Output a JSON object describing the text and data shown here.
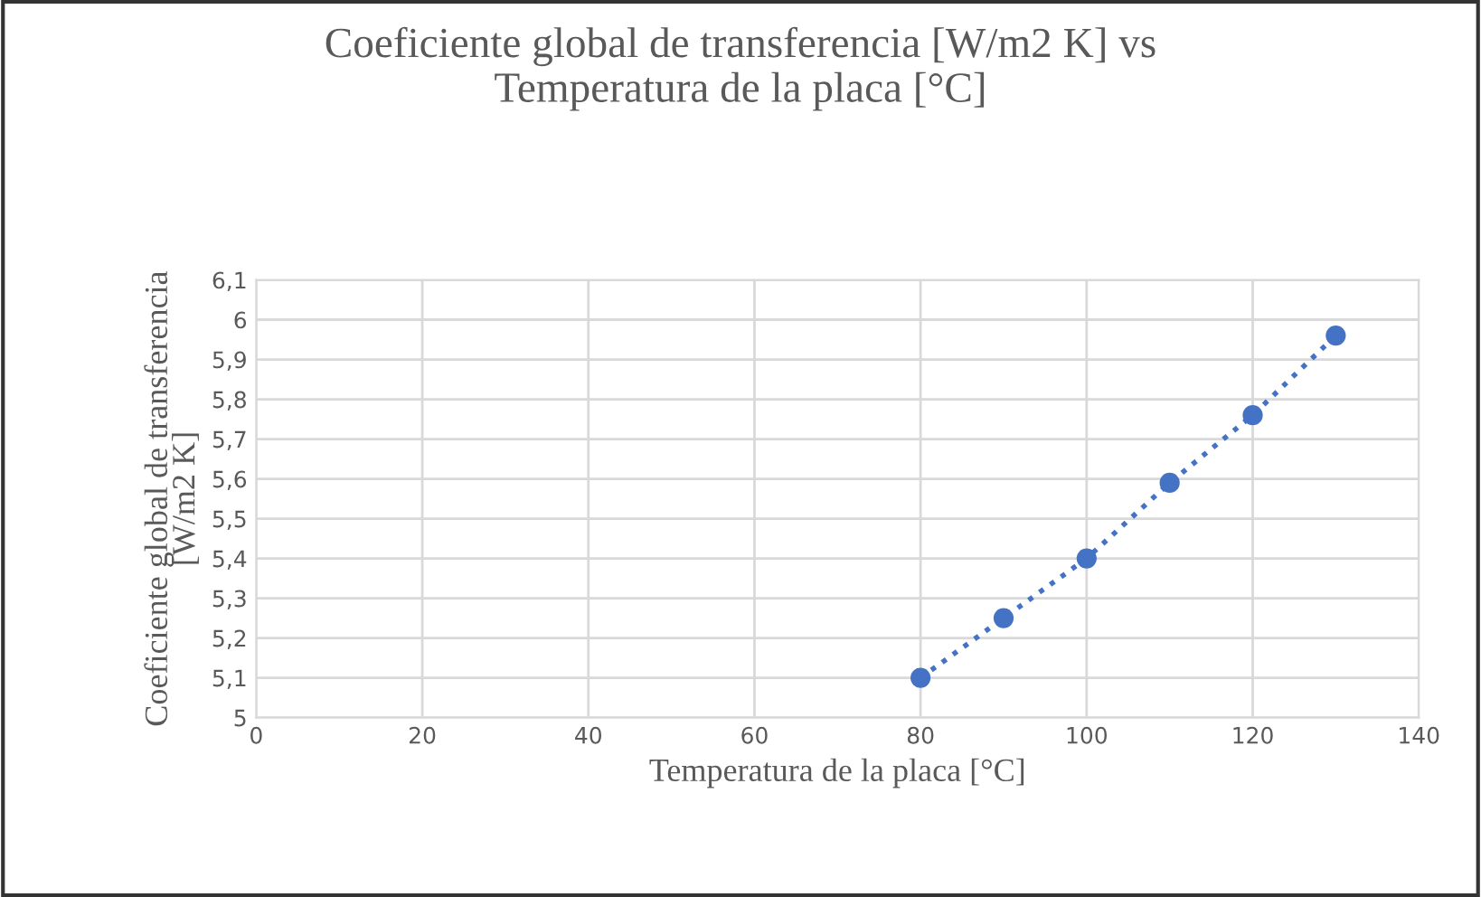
{
  "chart_data": {
    "type": "line",
    "title": "Coeficiente global de transferencia [W/m2 K] vs Temperatura de la placa [°C]",
    "xlabel": "Temperatura de la placa [°C]",
    "ylabel": "Coeficiente global de transferencia [W/m2 K]",
    "x": [
      80,
      90,
      100,
      110,
      120,
      130
    ],
    "series": [
      {
        "color": "#4472c4",
        "values": [
          5.1,
          5.25,
          5.4,
          5.59,
          5.76,
          5.96
        ]
      }
    ],
    "marker": "circle",
    "line_style": "dotted",
    "grid": true,
    "xlim": [
      0,
      140
    ],
    "xticks": [
      0,
      20,
      40,
      60,
      80,
      100,
      120,
      140
    ],
    "ylim": [
      5,
      6.1
    ],
    "yticks": [
      5,
      {
        "value": 5.1,
        "label": "5,1"
      },
      {
        "value": 5.2,
        "label": "5,2"
      },
      {
        "value": 5.3,
        "label": "5,3"
      },
      {
        "value": 5.4,
        "label": "5,4"
      },
      {
        "value": 5.5,
        "label": "5,5"
      },
      {
        "value": 5.6,
        "label": "5,6"
      },
      {
        "value": 5.7,
        "label": "5,7"
      },
      {
        "value": 5.8,
        "label": "5,8"
      },
      {
        "value": 5.9,
        "label": "5,9"
      },
      6,
      {
        "value": 6.1,
        "label": "6,1"
      }
    ]
  }
}
